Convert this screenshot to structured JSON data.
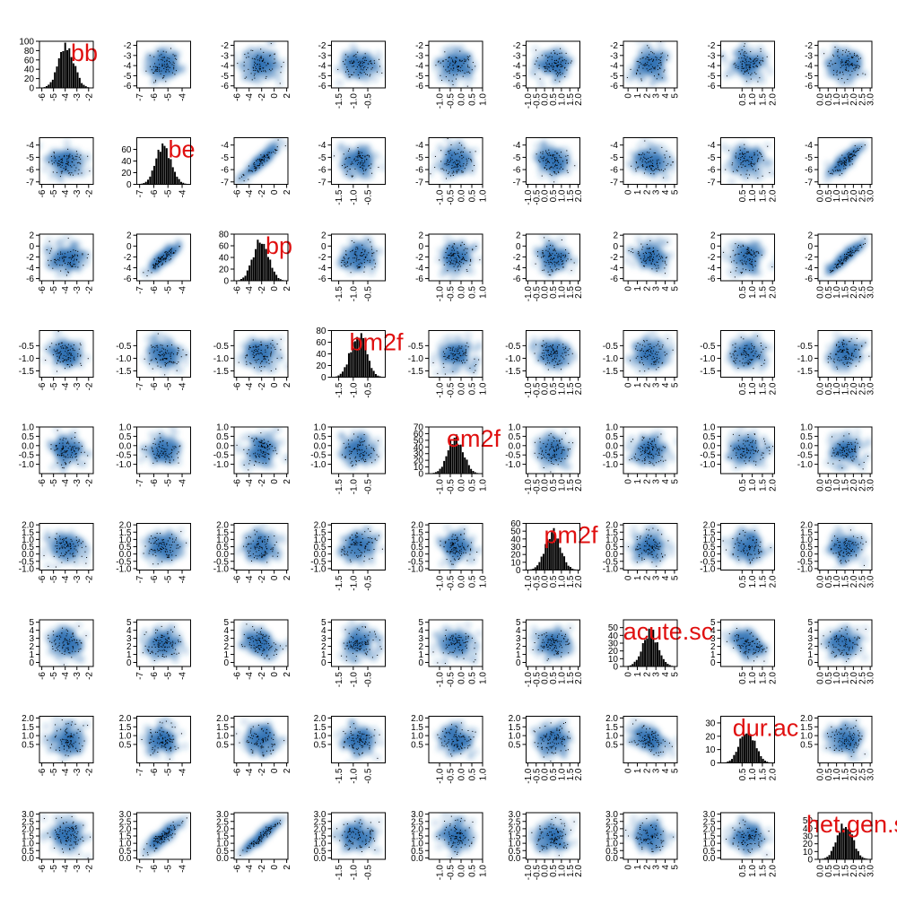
{
  "chart_data": {
    "type": "scatter",
    "title": "",
    "variables": [
      {
        "name": "bb",
        "ticks": [
          -6,
          -5,
          -4,
          -3,
          -2
        ],
        "range": [
          -6.2,
          -1.6
        ]
      },
      {
        "name": "be",
        "ticks": [
          -7,
          -6,
          -5,
          -4
        ],
        "range": [
          -7.2,
          -3.4
        ]
      },
      {
        "name": "bp",
        "ticks": [
          -6,
          -4,
          -2,
          0,
          2
        ],
        "range": [
          -6.4,
          2.2
        ]
      },
      {
        "name": "bm2f",
        "ticks": [
          -1.5,
          -1.0,
          -0.5
        ],
        "range": [
          -1.75,
          0.1
        ]
      },
      {
        "name": "em2f",
        "ticks": [
          -1.0,
          -0.5,
          0.0,
          0.5,
          1.0
        ],
        "range": [
          -1.5,
          1.0
        ]
      },
      {
        "name": "pm2f",
        "ticks": [
          -1.0,
          -0.5,
          0.0,
          0.5,
          1.0,
          1.5,
          2.0
        ],
        "range": [
          -1.1,
          2.1
        ]
      },
      {
        "name": "acute.sc",
        "ticks": [
          0,
          1,
          2,
          3,
          4,
          5
        ],
        "range": [
          -0.5,
          5.3
        ]
      },
      {
        "name": "dur.ac",
        "ticks": [
          0.5,
          1.0,
          1.5,
          2.0
        ],
        "range": [
          -0.55,
          2.1
        ]
      },
      {
        "name": "het.gen.sd",
        "ticks": [
          0.0,
          0.5,
          1.0,
          1.5,
          2.0,
          2.5,
          3.0
        ],
        "range": [
          -0.1,
          3.1
        ]
      }
    ],
    "histograms": [
      {
        "variable": "bb",
        "ylim": [
          0,
          100
        ],
        "yticks": [
          0,
          20,
          40,
          60,
          80,
          100
        ],
        "peak": 90
      },
      {
        "variable": "be",
        "ylim": [
          0,
          80
        ],
        "yticks": [
          0,
          20,
          40,
          60
        ],
        "peak": 65
      },
      {
        "variable": "bp",
        "ylim": [
          0,
          80
        ],
        "yticks": [
          0,
          20,
          40,
          60,
          80
        ],
        "peak": 72
      },
      {
        "variable": "bm2f",
        "ylim": [
          0,
          80
        ],
        "yticks": [
          0,
          20,
          40,
          60,
          80
        ],
        "peak": 75
      },
      {
        "variable": "em2f",
        "ylim": [
          0,
          70
        ],
        "yticks": [
          0,
          10,
          20,
          30,
          40,
          50,
          60,
          70
        ],
        "peak": 55
      },
      {
        "variable": "pm2f",
        "ylim": [
          0,
          60
        ],
        "yticks": [
          0,
          10,
          20,
          30,
          40,
          50,
          60
        ],
        "peak": 50
      },
      {
        "variable": "acute.sc",
        "ylim": [
          0,
          60
        ],
        "yticks": [
          0,
          10,
          20,
          30,
          40,
          50
        ],
        "peak": 45
      },
      {
        "variable": "dur.ac",
        "ylim": [
          0,
          35
        ],
        "yticks": [
          0,
          10,
          20,
          30
        ],
        "peak": 25
      },
      {
        "variable": "het.gen.sd",
        "ylim": [
          0,
          60
        ],
        "yticks": [
          0,
          10,
          20,
          30,
          40,
          50
        ],
        "peak": 45
      }
    ],
    "correlations": [
      [
        1.0,
        0.0,
        0.0,
        0.0,
        0.0,
        0.0,
        0.0,
        0.0,
        0.0
      ],
      [
        0.0,
        1.0,
        0.92,
        0.0,
        0.0,
        0.0,
        0.0,
        0.0,
        0.88
      ],
      [
        0.0,
        0.92,
        1.0,
        0.0,
        0.0,
        0.0,
        -0.3,
        0.0,
        0.95
      ],
      [
        0.0,
        0.0,
        0.0,
        1.0,
        0.0,
        0.0,
        0.0,
        0.0,
        0.0
      ],
      [
        0.0,
        0.0,
        0.0,
        0.0,
        1.0,
        0.0,
        0.0,
        0.0,
        0.0
      ],
      [
        0.0,
        0.0,
        0.0,
        0.0,
        0.0,
        1.0,
        0.0,
        0.0,
        0.0
      ],
      [
        0.0,
        0.0,
        -0.3,
        0.0,
        0.0,
        0.0,
        1.0,
        -0.35,
        0.0
      ],
      [
        0.0,
        0.0,
        0.0,
        0.0,
        0.0,
        0.0,
        -0.35,
        1.0,
        0.0
      ],
      [
        0.0,
        0.88,
        0.95,
        0.0,
        0.0,
        0.0,
        0.0,
        0.0,
        1.0
      ]
    ],
    "grid": false,
    "legend": "none",
    "colors": {
      "density": "#2b6cb0",
      "points": "#000000",
      "histogram": "#000000",
      "diagonal_label": "#e01010"
    }
  }
}
